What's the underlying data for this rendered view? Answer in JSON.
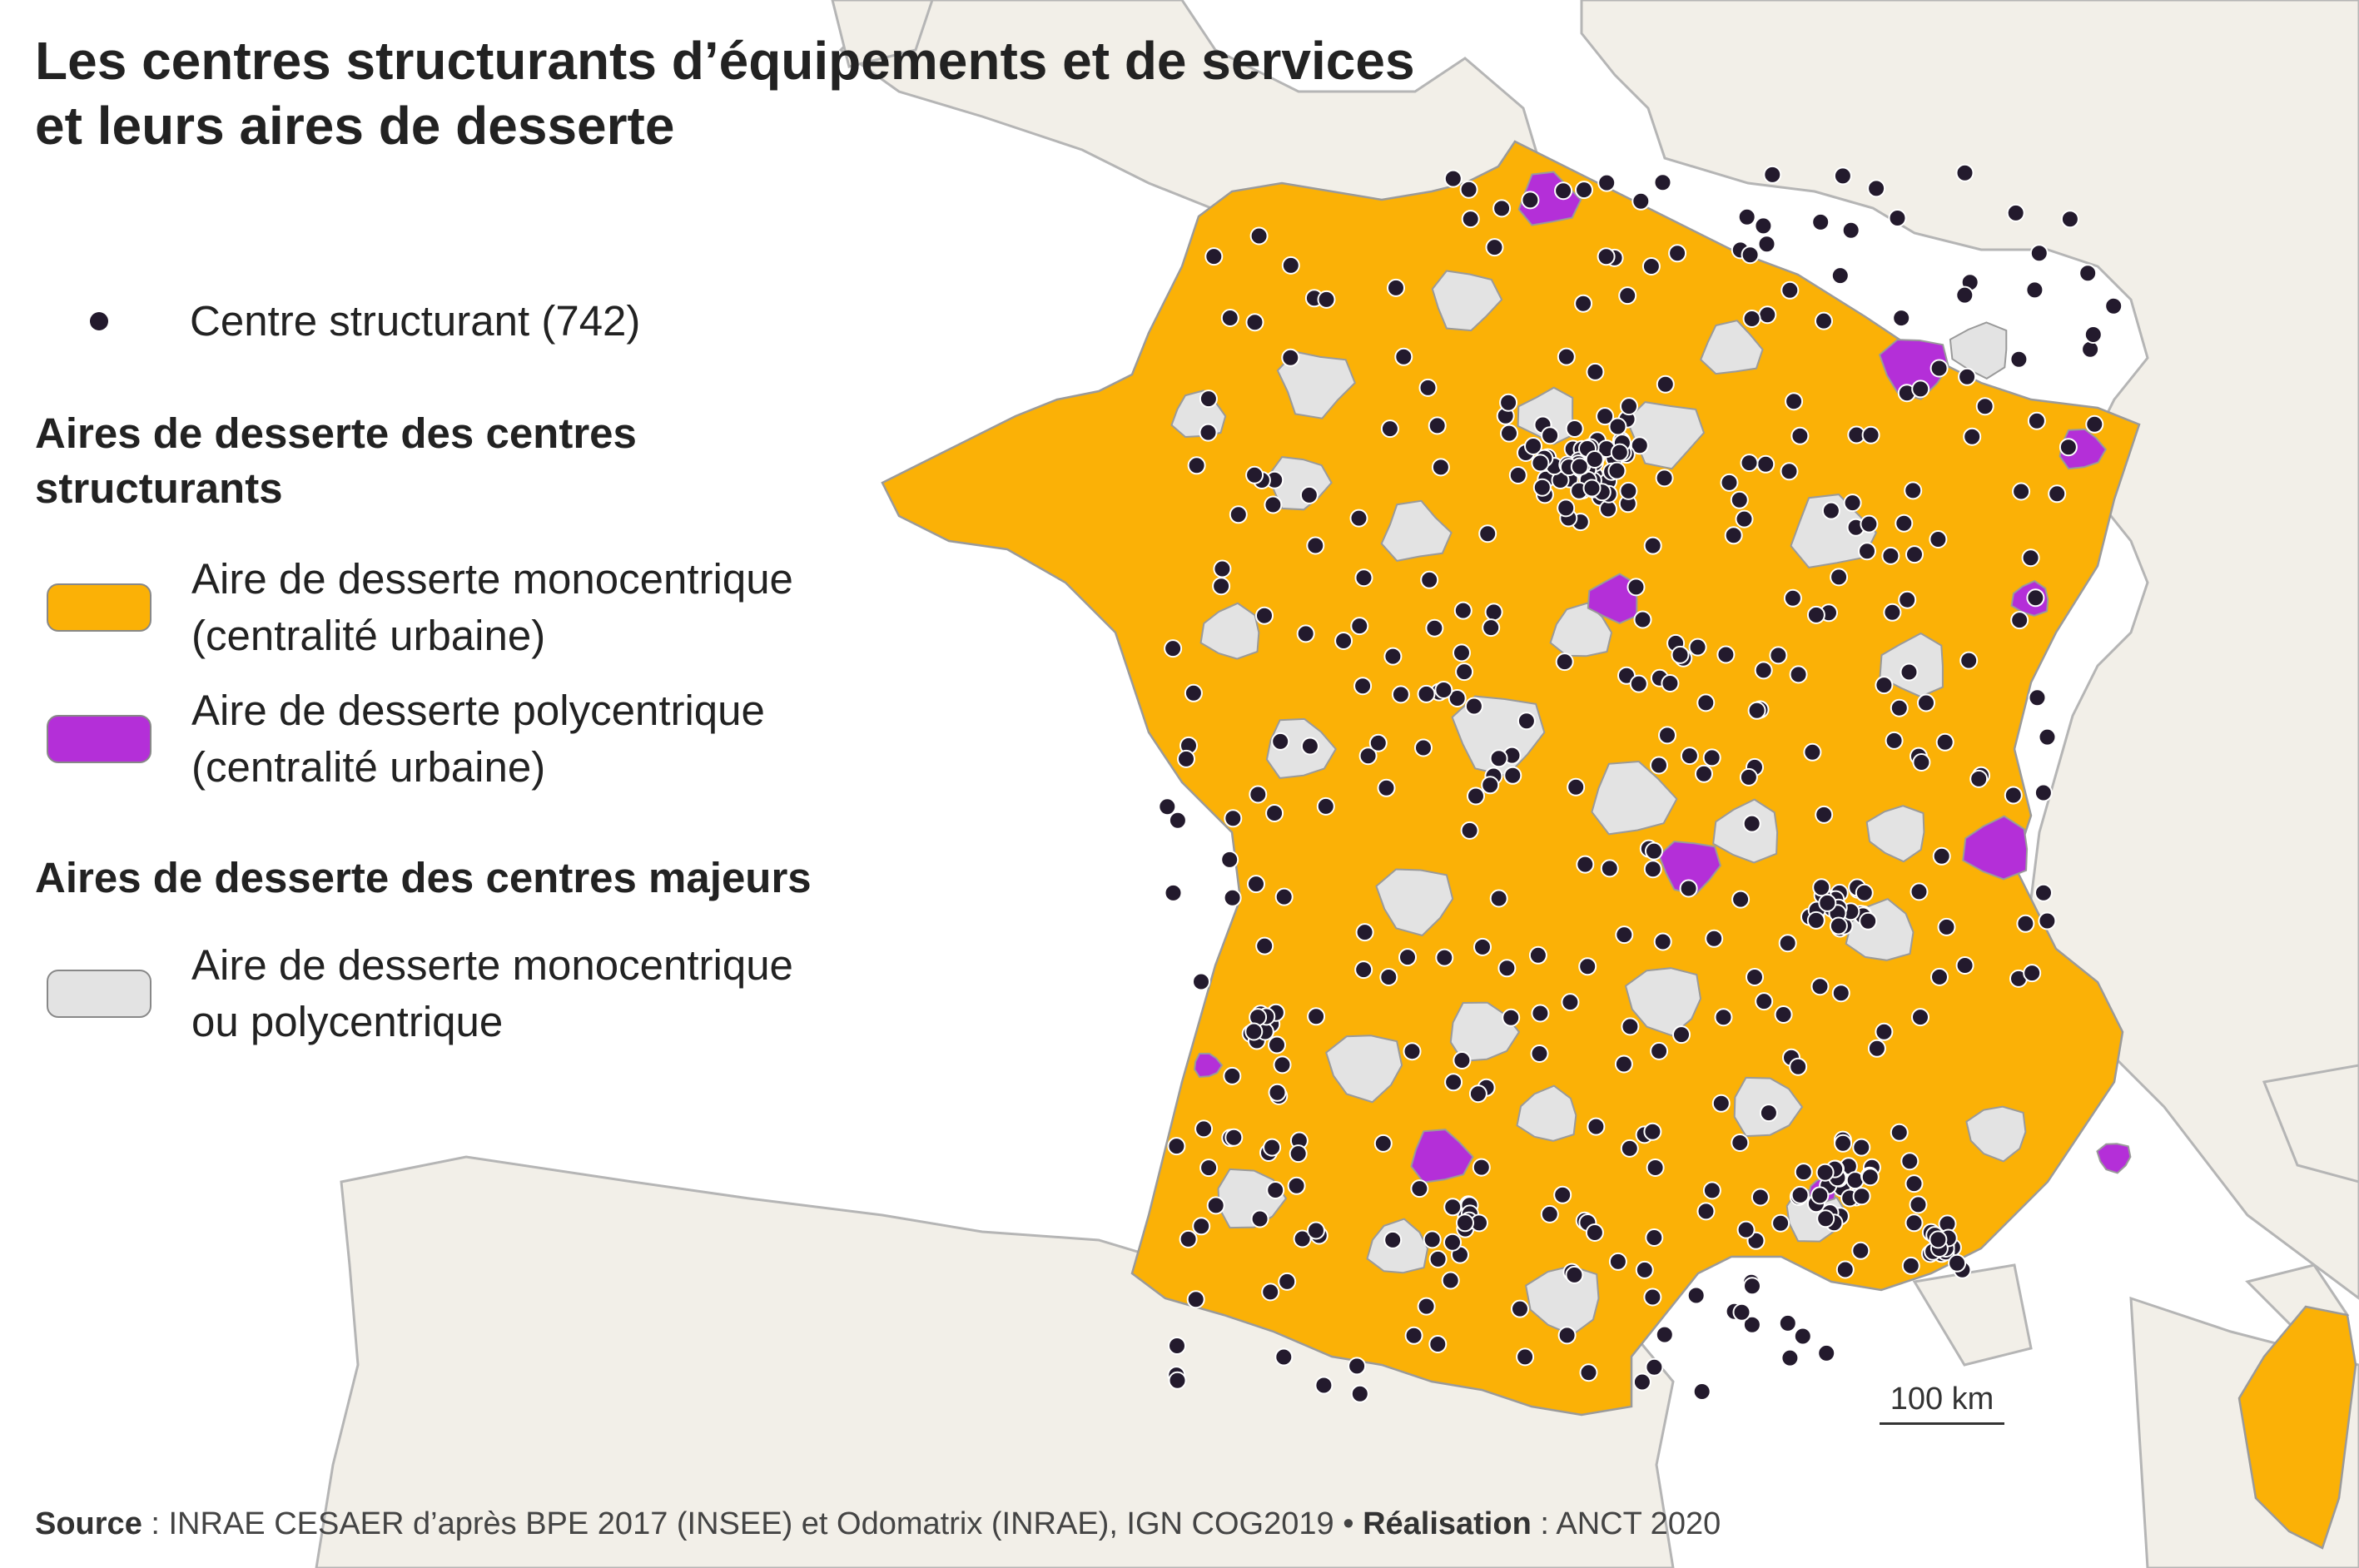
{
  "title": {
    "line1": "Les centres structurants d’équipements et de services",
    "line2": "et leurs aires de desserte"
  },
  "legend": {
    "centre": {
      "label": "Centre structurant (742)",
      "color": "#231a2d"
    },
    "section1": {
      "line1": "Aires de desserte des centres",
      "line2": "structurants"
    },
    "mono": {
      "line1": "Aire de desserte monocentrique",
      "line2": "(centralité urbaine)",
      "color": "#fbb106"
    },
    "poly": {
      "line1": "Aire de desserte polycentrique",
      "line2": "(centralité urbaine)",
      "color": "#b42fd8"
    },
    "section2": {
      "label": "Aires de desserte des centres majeurs"
    },
    "major": {
      "line1": "Aire de desserte monocentrique",
      "line2": "ou polycentrique",
      "color": "#e3e3e3"
    }
  },
  "scale": {
    "label": "100 km"
  },
  "source": {
    "source_label": "Source",
    "source_text": " : INRAE CESAER d’après BPE 2017 (INSEE) et Odomatrix (INRAE), IGN COG2019 • ",
    "credit_label": "Réalisation",
    "credit_text": " : ANCT 2020"
  },
  "colors": {
    "land": "#f2efe8",
    "border": "#a8a8a8",
    "sea": "#ffffff"
  }
}
